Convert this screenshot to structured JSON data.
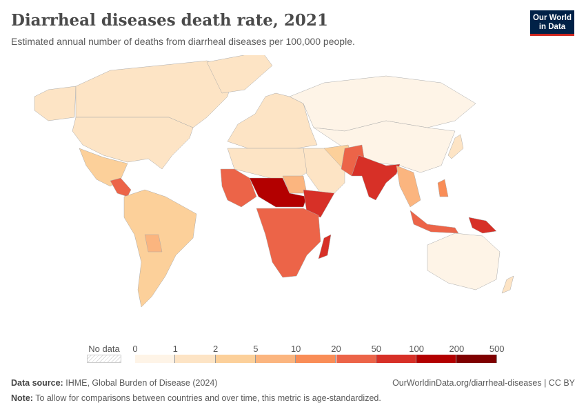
{
  "header": {
    "title": "Diarrheal diseases death rate, 2021",
    "subtitle": "Estimated annual number of deaths from diarrheal diseases per 100,000 people.",
    "logo_text": "Our World in Data"
  },
  "legend": {
    "no_data_label": "No data",
    "ticks": [
      "0",
      "1",
      "2",
      "5",
      "10",
      "20",
      "50",
      "100",
      "200",
      "500"
    ],
    "colors": [
      "#fef4e7",
      "#fde4c5",
      "#fcd09a",
      "#fbb57f",
      "#f98d57",
      "#ec6448",
      "#d73027",
      "#b30000",
      "#7f0000"
    ]
  },
  "map_fills": {
    "canada": 1,
    "alaska": 1,
    "greenland": 1,
    "usa": 1,
    "mexico": 2,
    "central-america": 5,
    "south-america": 2,
    "bolivia": 3,
    "europe": 1,
    "russia": 0,
    "central-east-asia": 0,
    "middle-east": 1,
    "iran-afghanistan": 2,
    "pakistan": 5,
    "india": 6,
    "southeast-asia": 3,
    "north-africa": 1,
    "west-africa": 5,
    "sahel": 7,
    "sudan": 3,
    "horn-of-africa": 6,
    "central-southern-africa": 5,
    "madagascar": 6,
    "indonesia": 5,
    "papua": 6,
    "australia": 0,
    "new-zealand": 1,
    "japan": 1,
    "philippines": 4
  },
  "footer": {
    "source_label": "Data source:",
    "source": "IHME, Global Burden of Disease (2024)",
    "url": "OurWorldinData.org/diarrheal-diseases | CC BY",
    "note_label": "Note:",
    "note": "To allow for comparisons between countries and over time, this metric is age-standardized."
  }
}
